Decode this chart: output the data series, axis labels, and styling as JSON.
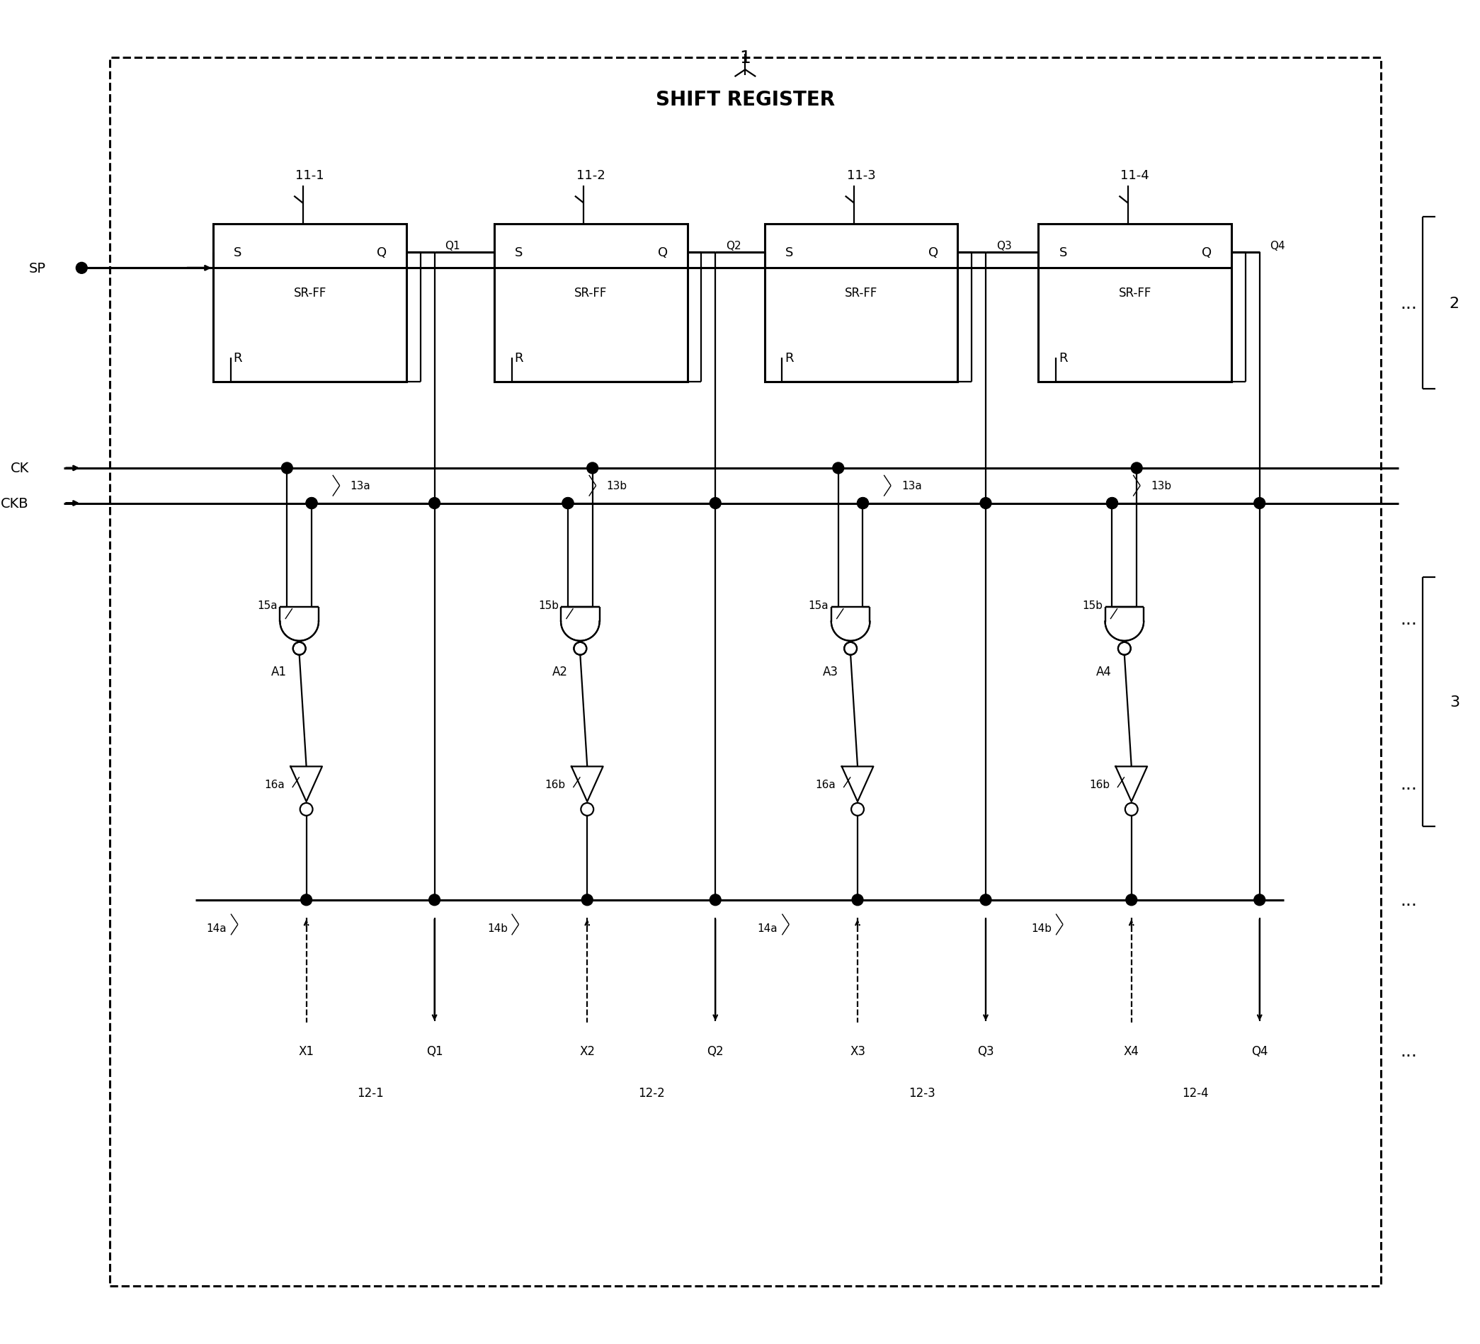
{
  "title": "SHIFT REGISTER",
  "label_1": "1",
  "label_2": "2",
  "label_3": "3",
  "sp_label": "SP",
  "ck_label": "CK",
  "ckb_label": "CKB",
  "ff_labels": [
    "11-1",
    "11-2",
    "11-3",
    "11-4"
  ],
  "ff_q_labels": [
    "Q1",
    "Q2",
    "Q3",
    "Q4"
  ],
  "ff_inner": "SR-FF",
  "ff_s": "S",
  "ff_q": "Q",
  "ff_r": "R",
  "ck_line_labels": [
    "13a",
    "13b",
    "13a",
    "13b"
  ],
  "and_labels": [
    "15a",
    "15b",
    "15a",
    "15b"
  ],
  "and_block_labels": [
    "A1",
    "A2",
    "A3",
    "A4"
  ],
  "tri_labels": [
    "16a",
    "16b",
    "16a",
    "16b"
  ],
  "bus_labels": [
    "14a",
    "14b",
    "14a",
    "14b"
  ],
  "output_x_labels": [
    "X1",
    "X2",
    "X3",
    "X4"
  ],
  "output_q_labels": [
    "Q1",
    "Q2",
    "Q3",
    "Q4"
  ],
  "stage_labels": [
    "12-1",
    "12-2",
    "12-3",
    "12-4"
  ],
  "bg_color": "#ffffff",
  "line_color": "#000000"
}
